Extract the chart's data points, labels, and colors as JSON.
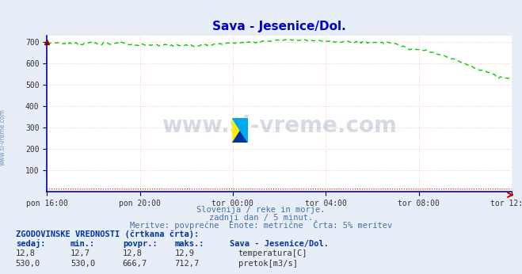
{
  "title": "Sava - Jesenice/Dol.",
  "title_color": "#0000cc",
  "bg_color": "#e8eef8",
  "plot_bg_color": "#ffffff",
  "x_labels": [
    "pon 16:00",
    "pon 20:00",
    "tor 00:00",
    "tor 04:00",
    "tor 08:00",
    "tor 12:00"
  ],
  "y_min": 0,
  "y_max": 700,
  "y_ticks": [
    100,
    200,
    300,
    400,
    500,
    600,
    700
  ],
  "grid_color_v": "#ffaaaa",
  "grid_color_h": "#ffaaaa",
  "spine_color": "#0000cc",
  "axis_arrow_color": "#cc0000",
  "watermark_text": "www.si-vreme.com",
  "watermark_color": "#1a3a6a",
  "watermark_alpha": 0.18,
  "subtitle1": "Slovenija / reke in morje.",
  "subtitle2": "zadnji dan / 5 minut.",
  "subtitle3": "Meritve: povprečne  Enote: metrične  Črta: 5% meritev",
  "subtitle_color": "#4a6fa5",
  "legend_title": "ZGODOVINSKE VREDNOSTI (črtkana črta):",
  "legend_cols": [
    "sedaj:",
    "min.:",
    "povpr.:",
    "maks.:",
    "Sava - Jesenice/Dol."
  ],
  "temp_row": [
    "12,8",
    "12,7",
    "12,8",
    "12,9",
    "temperatura[C]"
  ],
  "flow_row": [
    "530,0",
    "530,0",
    "666,7",
    "712,7",
    "pretok[m3/s]"
  ],
  "temp_color": "#cc0000",
  "flow_color": "#00aa00",
  "line_color": "#00cc00",
  "n_points": 288,
  "temp_value": 12.8,
  "sidebar_text": "www.si-vreme.com",
  "sidebar_color": "#4a6fa5"
}
